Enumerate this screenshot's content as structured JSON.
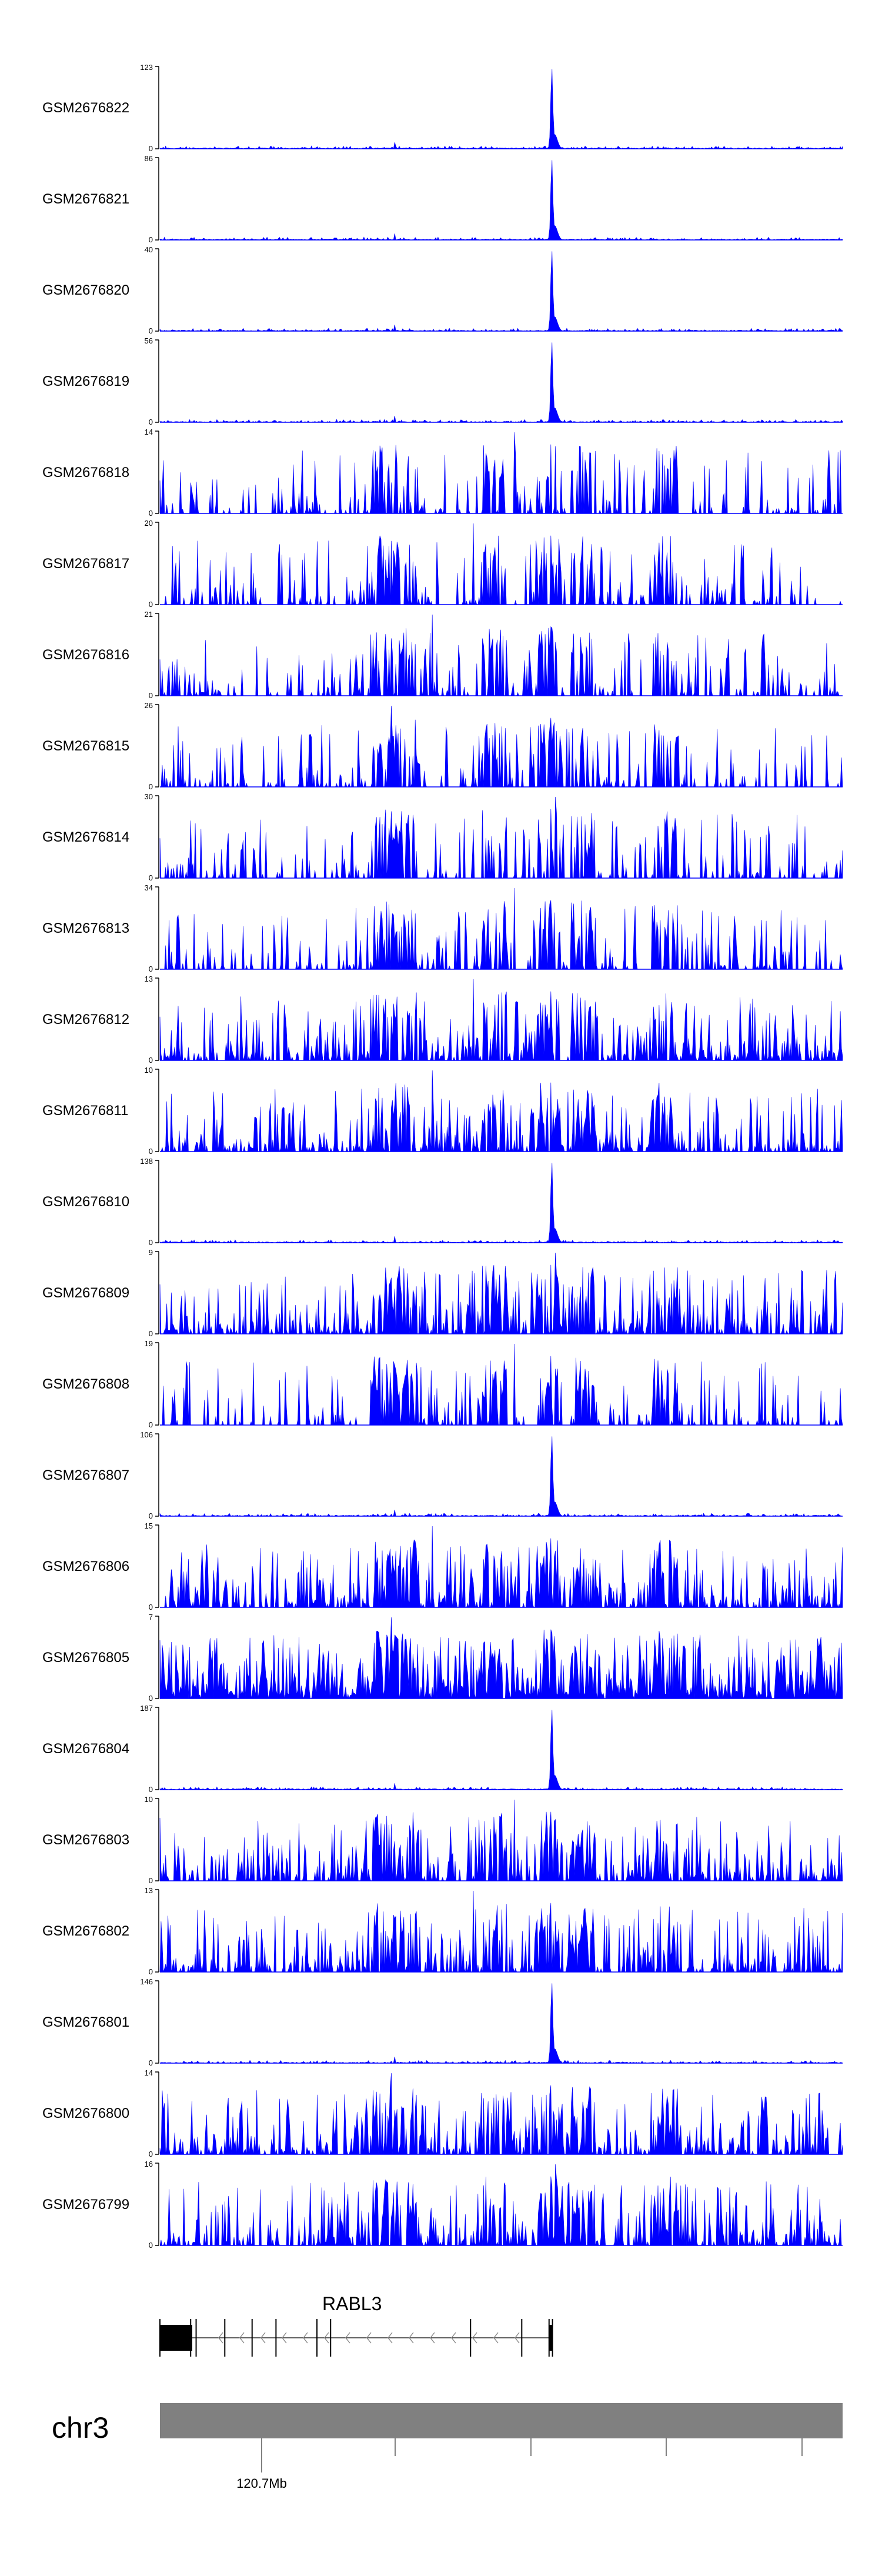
{
  "chart_data": {
    "type": "area",
    "title": "",
    "color": "#0000ff",
    "tracks": [
      {
        "name": "GSM2676822",
        "max": 123,
        "min": 0,
        "profile": "peak",
        "seed": 22
      },
      {
        "name": "GSM2676821",
        "max": 86,
        "min": 0,
        "profile": "peak",
        "seed": 21
      },
      {
        "name": "GSM2676820",
        "max": 40,
        "min": 0,
        "profile": "peak",
        "seed": 20
      },
      {
        "name": "GSM2676819",
        "max": 56,
        "min": 0,
        "profile": "peak",
        "seed": 19
      },
      {
        "name": "GSM2676818",
        "max": 14,
        "min": 0,
        "profile": "sparse",
        "seed": 18
      },
      {
        "name": "GSM2676817",
        "max": 20,
        "min": 0,
        "profile": "sparse",
        "seed": 17
      },
      {
        "name": "GSM2676816",
        "max": 21,
        "min": 0,
        "profile": "sparse",
        "seed": 16
      },
      {
        "name": "GSM2676815",
        "max": 26,
        "min": 0,
        "profile": "sparse",
        "seed": 15
      },
      {
        "name": "GSM2676814",
        "max": 30,
        "min": 0,
        "profile": "sparse",
        "seed": 14
      },
      {
        "name": "GSM2676813",
        "max": 34,
        "min": 0,
        "profile": "sparse",
        "seed": 13
      },
      {
        "name": "GSM2676812",
        "max": 13,
        "min": 0,
        "profile": "dense",
        "seed": 12
      },
      {
        "name": "GSM2676811",
        "max": 10,
        "min": 0,
        "profile": "dense",
        "seed": 11
      },
      {
        "name": "GSM2676810",
        "max": 138,
        "min": 0,
        "profile": "peak",
        "seed": 10
      },
      {
        "name": "GSM2676809",
        "max": 9,
        "min": 0,
        "profile": "dense",
        "seed": 9
      },
      {
        "name": "GSM2676808",
        "max": 19,
        "min": 0,
        "profile": "sparse",
        "seed": 8
      },
      {
        "name": "GSM2676807",
        "max": 106,
        "min": 0,
        "profile": "peak",
        "seed": 7
      },
      {
        "name": "GSM2676806",
        "max": 15,
        "min": 0,
        "profile": "dense",
        "seed": 6
      },
      {
        "name": "GSM2676805",
        "max": 7,
        "min": 0,
        "profile": "noisy",
        "seed": 5
      },
      {
        "name": "GSM2676804",
        "max": 187,
        "min": 0,
        "profile": "peak",
        "seed": 4
      },
      {
        "name": "GSM2676803",
        "max": 10,
        "min": 0,
        "profile": "dense",
        "seed": 3
      },
      {
        "name": "GSM2676802",
        "max": 13,
        "min": 0,
        "profile": "dense",
        "seed": 2
      },
      {
        "name": "GSM2676801",
        "max": 146,
        "min": 0,
        "profile": "peak",
        "seed": 1
      },
      {
        "name": "GSM2676800",
        "max": 14,
        "min": 0,
        "profile": "dense",
        "seed": 100
      },
      {
        "name": "GSM2676799",
        "max": 16,
        "min": 0,
        "profile": "dense",
        "seed": 99
      }
    ],
    "gene": {
      "name": "RABL3",
      "strand": "-",
      "exons": [
        0.0,
        0.045,
        0.053,
        0.095,
        0.135,
        0.17,
        0.23,
        0.25,
        0.455,
        0.53,
        0.57,
        0.575
      ]
    },
    "chromosome": {
      "label": "chr3",
      "tick_labels": [
        "120.7Mb"
      ],
      "bar_color": "#808080"
    }
  }
}
